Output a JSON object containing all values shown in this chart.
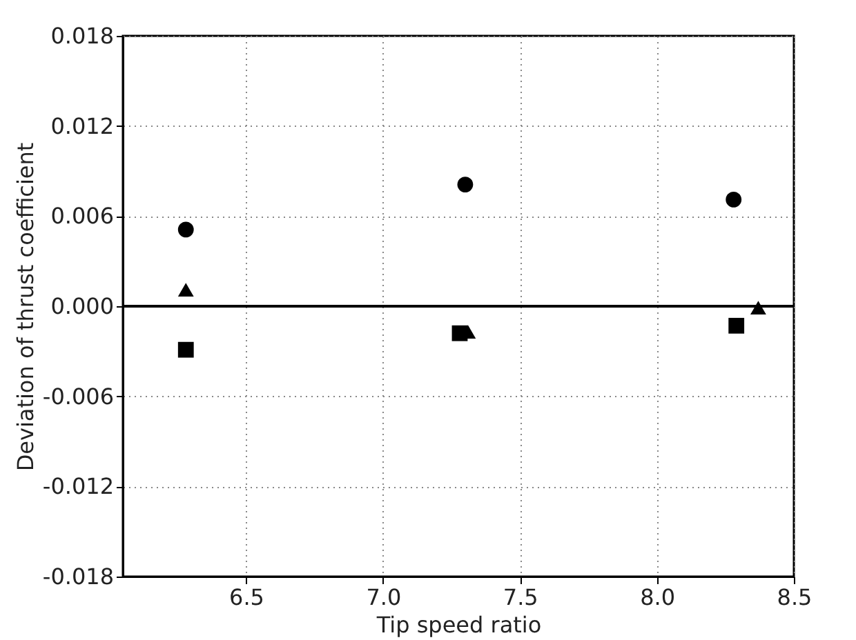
{
  "chart_data": {
    "type": "scatter",
    "xlabel": "Tip speed ratio",
    "ylabel": "Deviation of thrust coefficient",
    "series": [
      {
        "color": "#000000",
        "marker": "circle",
        "x": [
          6.28,
          7.3,
          8.28
        ],
        "values": [
          0.0051,
          0.0081,
          0.0071
        ]
      },
      {
        "color": "#000000",
        "marker": "triangle",
        "x": [
          6.28,
          7.31,
          8.37
        ],
        "values": [
          0.0011,
          -0.0017,
          -0.0001
        ]
      },
      {
        "color": "#000000",
        "marker": "square",
        "x": [
          6.28,
          7.28,
          8.29
        ],
        "values": [
          -0.0029,
          -0.0018,
          -0.0013
        ]
      }
    ],
    "xlim": [
      6.05,
      8.5
    ],
    "xticks": [
      6.5,
      {
        "value": 7,
        "label": "7.0"
      },
      7.5,
      {
        "value": 8,
        "label": "8.0"
      },
      8.5
    ],
    "ylim": [
      -0.018,
      0.018
    ],
    "yticks": [
      {
        "value": -0.018,
        "label": "-0.018"
      },
      {
        "value": -0.012,
        "label": "-0.012"
      },
      {
        "value": -0.006,
        "label": "-0.006"
      },
      {
        "value": 0,
        "label": "0.000"
      },
      {
        "value": 0.006,
        "label": "0.006"
      },
      {
        "value": 0.012,
        "label": "0.012"
      },
      {
        "value": 0.018,
        "label": "0.018"
      }
    ],
    "ref_lines": [
      {
        "axis": "y",
        "value": 0,
        "color": "#000000",
        "line_style": "solid"
      }
    ],
    "grid": true
  }
}
